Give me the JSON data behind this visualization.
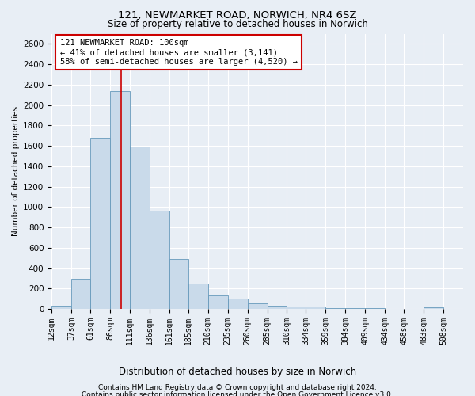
{
  "title": "121, NEWMARKET ROAD, NORWICH, NR4 6SZ",
  "subtitle": "Size of property relative to detached houses in Norwich",
  "xlabel": "Distribution of detached houses by size in Norwich",
  "ylabel": "Number of detached properties",
  "bar_color": "#c9daea",
  "bar_edge_color": "#6699bb",
  "red_line_x": 100,
  "annotation_text": "121 NEWMARKET ROAD: 100sqm\n← 41% of detached houses are smaller (3,141)\n58% of semi-detached houses are larger (4,520) →",
  "annotation_box_facecolor": "#ffffff",
  "annotation_box_edgecolor": "#cc0000",
  "footer_line1": "Contains HM Land Registry data © Crown copyright and database right 2024.",
  "footer_line2": "Contains public sector information licensed under the Open Government Licence v3.0.",
  "bin_edges": [
    12,
    37,
    61,
    86,
    111,
    136,
    161,
    185,
    210,
    235,
    260,
    285,
    310,
    334,
    359,
    384,
    409,
    434,
    458,
    483,
    508
  ],
  "bar_heights": [
    30,
    295,
    1680,
    2140,
    1595,
    960,
    490,
    245,
    130,
    105,
    55,
    30,
    20,
    20,
    10,
    5,
    5,
    3,
    3,
    15
  ],
  "ylim": [
    0,
    2700
  ],
  "yticks": [
    0,
    200,
    400,
    600,
    800,
    1000,
    1200,
    1400,
    1600,
    1800,
    2000,
    2200,
    2400,
    2600
  ],
  "xlim_right": 533,
  "background_color": "#e8eef5",
  "plot_background_color": "#e8eef5",
  "grid_color": "#ffffff",
  "title_fontsize": 9.5,
  "subtitle_fontsize": 8.5,
  "ylabel_fontsize": 7.5,
  "xlabel_fontsize": 8.5,
  "ytick_fontsize": 7.5,
  "xtick_fontsize": 7.0,
  "footer_fontsize": 6.5,
  "annot_fontsize": 7.5
}
